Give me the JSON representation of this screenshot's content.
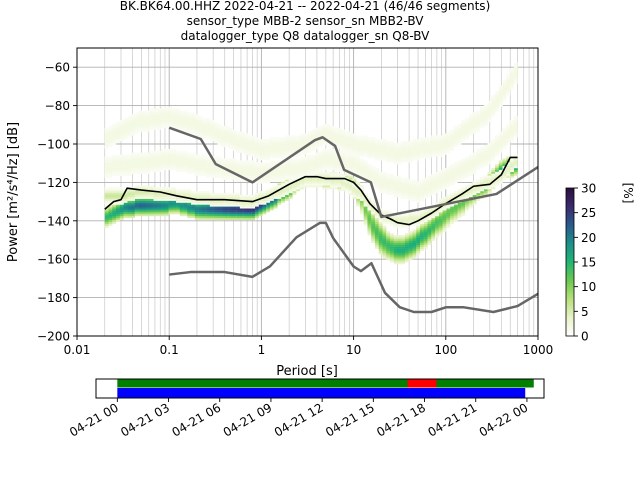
{
  "title_lines": [
    "BK.BK64.00.HHZ   2022-04-21 -- 2022-04-21  (46/46 segments)",
    "sensor_type MBB-2 sensor_sn MBB2-BV",
    "datalogger_type Q8 datalogger_sn Q8-BV"
  ],
  "chart_data": [
    {
      "type": "heatmap",
      "title": "BK.BK64.00.HHZ   2022-04-21 -- 2022-04-21  (46/46 segments)",
      "xlabel": "Period [s]",
      "ylabel": "Power [m²/s⁴/Hz] [dB]",
      "xscale": "log",
      "xlim": [
        0.01,
        1000
      ],
      "ylim": [
        -200,
        -50
      ],
      "xticks": [
        0.01,
        0.1,
        1,
        10,
        100,
        1000
      ],
      "xticklabels": [
        "0.01",
        "0.1",
        "1",
        "10",
        "100",
        "1000"
      ],
      "yticks": [
        -200,
        -180,
        -160,
        -140,
        -120,
        -100,
        -80,
        -60
      ],
      "yticklabels": [
        "−200",
        "−180",
        "−160",
        "−140",
        "−120",
        "−100",
        "−80",
        "−60"
      ],
      "grid": true,
      "colorbar": {
        "label": "[%]",
        "range": [
          0,
          30
        ],
        "ticks": [
          0,
          5,
          10,
          15,
          20,
          25,
          30
        ],
        "ticklabels": [
          "0",
          "5",
          "10",
          "15",
          "20",
          "25",
          "30"
        ],
        "colormap": [
          "#ffffff",
          "#e8f3c8",
          "#b6e07a",
          "#6cc850",
          "#21b573",
          "#1e8f8a",
          "#2b5a8c",
          "#3b2a6e",
          "#2a0f3f"
        ]
      },
      "series": [
        {
          "name": "mode",
          "style": "line",
          "color": "#000000",
          "x": [
            0.02,
            0.025,
            0.03,
            0.035,
            0.05,
            0.08,
            0.12,
            0.2,
            0.4,
            0.8,
            1.2,
            2,
            3,
            4,
            5,
            6,
            8,
            10,
            12,
            15,
            20,
            25,
            30,
            40,
            50,
            70,
            100,
            150,
            200,
            300,
            400,
            500,
            600
          ],
          "y": [
            -134,
            -130,
            -129,
            -123,
            -124,
            -125,
            -127,
            -129,
            -129,
            -130,
            -127,
            -121,
            -117,
            -117,
            -118,
            -118,
            -118,
            -120,
            -124,
            -131,
            -137,
            -139,
            -141,
            -142,
            -140,
            -136,
            -131,
            -126,
            -122,
            -121,
            -116,
            -107,
            -107
          ]
        },
        {
          "name": "new high noise model",
          "style": "line",
          "color": "#666666",
          "x": [
            0.1,
            0.22,
            0.32,
            0.8,
            3.8,
            4.6,
            6.3,
            7.9,
            15.4,
            20,
            354.8,
            1000
          ],
          "y": [
            -91.5,
            -97.4,
            -110.5,
            -120,
            -98,
            -96.5,
            -101,
            -113.5,
            -120,
            -138,
            -126,
            -112
          ]
        },
        {
          "name": "new low noise model",
          "style": "line",
          "color": "#666666",
          "x": [
            0.1,
            0.17,
            0.4,
            0.8,
            1.24,
            2.4,
            4.3,
            5,
            6,
            10,
            12,
            15.6,
            21.9,
            31.6,
            45,
            70,
            101,
            154,
            328,
            600,
            1000
          ],
          "y": [
            -168,
            -166.7,
            -166.7,
            -169.2,
            -163.7,
            -148.6,
            -141.1,
            -141.1,
            -149,
            -163.8,
            -166.2,
            -162.1,
            -177.5,
            -185,
            -187.5,
            -187.5,
            -185,
            -185,
            -187.5,
            -184.4,
            -178
          ]
        }
      ],
      "density_bands": [
        {
          "name": "primary",
          "x": [
            0.02,
            0.025,
            0.03,
            0.035,
            0.05,
            0.08,
            0.12,
            0.2,
            0.4,
            0.8,
            1.2,
            2,
            3,
            4,
            5,
            6,
            8,
            10,
            12,
            15,
            20,
            25,
            30,
            40,
            50,
            70,
            100,
            150,
            200,
            300,
            400,
            500,
            600
          ],
          "center": [
            -138,
            -136,
            -134,
            -133,
            -132,
            -132,
            -131,
            -134,
            -134,
            -134,
            -130,
            -123,
            -118,
            -118,
            -119,
            -119,
            -120,
            -122,
            -128,
            -140,
            -150,
            -154,
            -155,
            -154,
            -150,
            -144,
            -137,
            -130,
            -126,
            -120,
            -114,
            -112,
            -111
          ],
          "spread": [
            3,
            3,
            3,
            3,
            3,
            3,
            3,
            3,
            3,
            3,
            3,
            3,
            2,
            2,
            2,
            2,
            2,
            3,
            4,
            5,
            5,
            4,
            4,
            4,
            4,
            4,
            4,
            4,
            3,
            3,
            3,
            3,
            3
          ],
          "peak_percent": [
            14,
            16,
            18,
            20,
            22,
            20,
            18,
            20,
            24,
            26,
            22,
            20,
            16,
            16,
            16,
            16,
            14,
            12,
            10,
            12,
            14,
            14,
            16,
            16,
            16,
            14,
            12,
            12,
            12,
            14,
            16,
            18,
            18
          ]
        },
        {
          "name": "secondary",
          "x": [
            0.02,
            0.03,
            0.05,
            0.1,
            0.2,
            0.4,
            0.8,
            1.5,
            3,
            5,
            8,
            12,
            20,
            30,
            50,
            100,
            200,
            400,
            600
          ],
          "center": [
            -127,
            -127,
            -125,
            -126,
            -128,
            -129,
            -130,
            -125,
            -118,
            -118,
            -120,
            -126,
            -137,
            -140,
            -139,
            -131,
            -123,
            -117,
            -108
          ],
          "spread": [
            2,
            2,
            2,
            2,
            2,
            2,
            2,
            2,
            2,
            2,
            2,
            2,
            2,
            2,
            2,
            2,
            2,
            2,
            2
          ],
          "peak_percent": [
            6,
            6,
            5,
            4,
            4,
            4,
            4,
            4,
            4,
            4,
            4,
            4,
            4,
            4,
            4,
            4,
            4,
            4,
            4
          ]
        },
        {
          "name": "faint-upper",
          "x": [
            0.02,
            0.05,
            0.1,
            0.2,
            0.5,
            1,
            3,
            5,
            10,
            30,
            100,
            300,
            600
          ],
          "center": [
            -97,
            -88,
            -86,
            -90,
            -98,
            -103,
            -100,
            -95,
            -100,
            -105,
            -100,
            -83,
            -62
          ],
          "spread": [
            4,
            4,
            4,
            4,
            4,
            4,
            4,
            4,
            4,
            4,
            4,
            4,
            4
          ],
          "peak_percent": [
            2,
            2,
            2,
            2,
            2,
            2,
            2,
            2,
            2,
            2,
            2,
            2,
            2
          ]
        },
        {
          "name": "faint-mid",
          "x": [
            0.02,
            0.05,
            0.1,
            0.3,
            1,
            3,
            5,
            10,
            20,
            50,
            100,
            300,
            600
          ],
          "center": [
            -112,
            -110,
            -108,
            -112,
            -115,
            -112,
            -108,
            -110,
            -120,
            -125,
            -118,
            -105,
            -90
          ],
          "spread": [
            4,
            4,
            4,
            4,
            4,
            4,
            4,
            4,
            4,
            4,
            4,
            4,
            4
          ],
          "peak_percent": [
            2,
            2,
            2,
            2,
            2,
            2,
            2,
            2,
            2,
            2,
            2,
            2,
            2
          ]
        }
      ]
    },
    {
      "type": "timeline",
      "xlabels": [
        "04-21 00",
        "04-21 03",
        "04-21 06",
        "04-21 09",
        "04-21 12",
        "04-21 15",
        "04-21 18",
        "04-21 21",
        "04-22 00"
      ],
      "xlim_hours": [
        -1.25,
        25
      ],
      "xticks_hours": [
        0,
        3,
        6,
        9,
        12,
        15,
        18,
        21,
        24
      ],
      "bars": [
        {
          "name": "data-available",
          "color": "#008000",
          "start_hours": 0,
          "end_hours": 24.4
        },
        {
          "name": "gap-overlap",
          "color": "#ff0000",
          "start_hours": 17,
          "end_hours": 18.7
        },
        {
          "name": "psd-segments",
          "color": "#0000ff",
          "start_hours": 0,
          "end_hours": 23.9
        }
      ]
    }
  ]
}
